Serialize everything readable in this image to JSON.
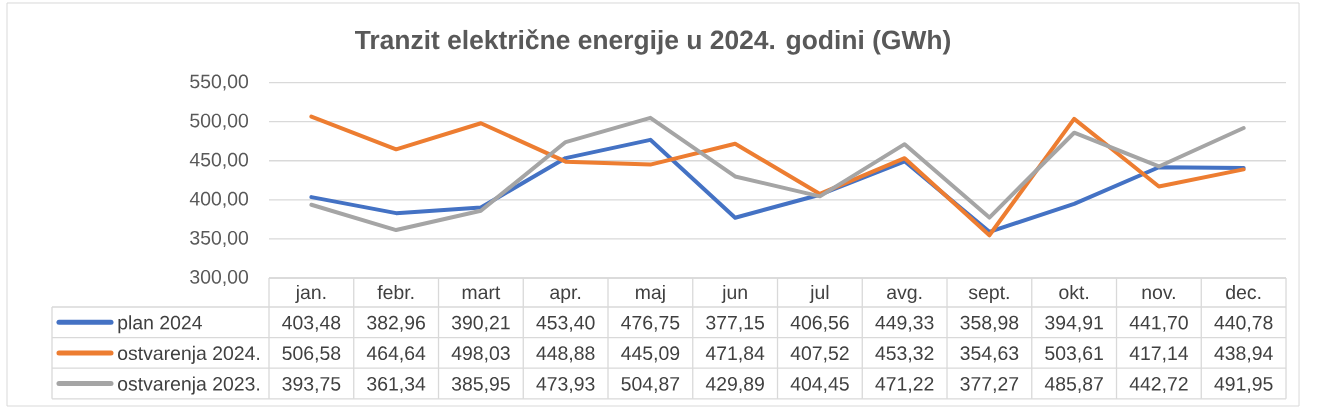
{
  "chart_data": {
    "type": "line",
    "title": "Tranzit električne energije u 2024. godini (GWh)",
    "categories": [
      "jan.",
      "febr.",
      "mart",
      "apr.",
      "maj",
      "jun",
      "jul",
      "avg.",
      "sept.",
      "okt.",
      "nov.",
      "dec."
    ],
    "series": [
      {
        "name": "plan 2024",
        "color": "#4472c4",
        "values": [
          403.48,
          382.96,
          390.21,
          453.4,
          476.75,
          377.15,
          406.56,
          449.33,
          358.98,
          394.91,
          441.7,
          440.78
        ],
        "value_labels": [
          "403,48",
          "382,96",
          "390,21",
          "453,40",
          "476,75",
          "377,15",
          "406,56",
          "449,33",
          "358,98",
          "394,91",
          "441,70",
          "440,78"
        ]
      },
      {
        "name": "ostvarenja 2024.",
        "color": "#ed7d31",
        "values": [
          506.58,
          464.64,
          498.03,
          448.88,
          445.09,
          471.84,
          407.52,
          453.32,
          354.63,
          503.61,
          417.14,
          438.94
        ],
        "value_labels": [
          "506,58",
          "464,64",
          "498,03",
          "448,88",
          "445,09",
          "471,84",
          "407,52",
          "453,32",
          "354,63",
          "503,61",
          "417,14",
          "438,94"
        ]
      },
      {
        "name": "ostvarenja 2023.",
        "color": "#a5a5a5",
        "values": [
          393.75,
          361.34,
          385.95,
          473.93,
          504.87,
          429.89,
          404.45,
          471.22,
          377.27,
          485.87,
          442.72,
          491.95
        ],
        "value_labels": [
          "393,75",
          "361,34",
          "385,95",
          "473,93",
          "504,87",
          "429,89",
          "404,45",
          "471,22",
          "377,27",
          "485,87",
          "442,72",
          "491,95"
        ]
      }
    ],
    "ylim": [
      300,
      550
    ],
    "yticks": [
      {
        "value": 300,
        "label": "300,00"
      },
      {
        "value": 350,
        "label": "350,00"
      },
      {
        "value": 400,
        "label": "400,00"
      },
      {
        "value": 450,
        "label": "450,00"
      },
      {
        "value": 500,
        "label": "500,00"
      },
      {
        "value": 550,
        "label": "550,00"
      }
    ],
    "grid": "y",
    "legend": "bottom"
  }
}
